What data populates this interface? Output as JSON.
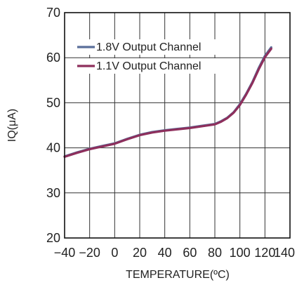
{
  "chart_data": {
    "type": "line",
    "title": "",
    "xlabel": "TEMPERATURE(ºC)",
    "ylabel": "IQ(μA)",
    "xlim": [
      -40,
      140
    ],
    "ylim": [
      20,
      70
    ],
    "x_ticks": [
      -40,
      -20,
      0,
      20,
      40,
      60,
      80,
      100,
      120,
      140
    ],
    "y_ticks": [
      20,
      30,
      40,
      50,
      60,
      70
    ],
    "grid": true,
    "legend_position": "top-left",
    "series": [
      {
        "name": "1.8V Output Channel",
        "color": "#5a6f9a",
        "x": [
          -40,
          -30,
          -20,
          -10,
          0,
          10,
          20,
          30,
          40,
          50,
          60,
          70,
          80,
          85,
          90,
          95,
          100,
          105,
          110,
          115,
          120,
          125
        ],
        "y": [
          38.1,
          39.0,
          39.8,
          40.4,
          41.0,
          42.0,
          42.9,
          43.5,
          43.9,
          44.2,
          44.5,
          44.9,
          45.3,
          45.9,
          46.7,
          47.9,
          49.7,
          52.0,
          54.6,
          57.7,
          60.4,
          62.3
        ]
      },
      {
        "name": "1.1V Output Channel",
        "color": "#8e2f5c",
        "x": [
          -40,
          -30,
          -20,
          -10,
          0,
          10,
          20,
          30,
          40,
          50,
          60,
          70,
          80,
          85,
          90,
          95,
          100,
          105,
          110,
          115,
          120,
          125
        ],
        "y": [
          38.0,
          38.9,
          39.7,
          40.3,
          40.9,
          41.9,
          42.8,
          43.4,
          43.8,
          44.1,
          44.4,
          44.8,
          45.2,
          45.8,
          46.6,
          47.8,
          49.5,
          51.8,
          54.4,
          57.4,
          60.1,
          62.0
        ]
      }
    ]
  }
}
